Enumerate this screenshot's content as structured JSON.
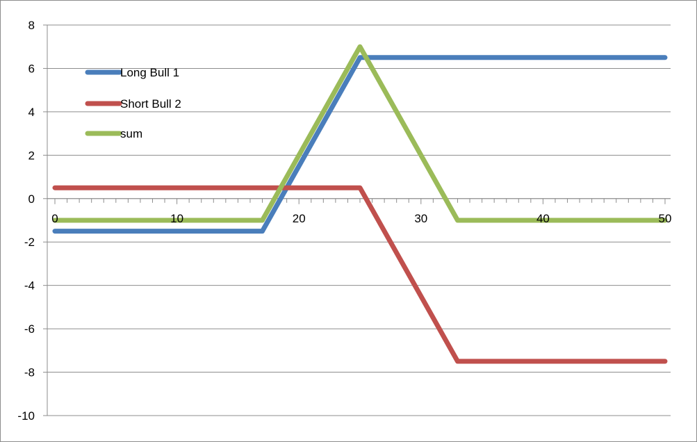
{
  "chart_data": {
    "type": "line",
    "title": "",
    "xlabel": "",
    "ylabel": "",
    "xlim": [
      0,
      50
    ],
    "ylim": [
      -10,
      8
    ],
    "x_ticks": [
      0,
      10,
      20,
      30,
      40,
      50
    ],
    "x_tick_labels": [
      "0",
      "10",
      "20",
      "30",
      "40",
      "50"
    ],
    "y_ticks": [
      8,
      6,
      4,
      2,
      0,
      -2,
      -4,
      -6,
      -8,
      -10
    ],
    "y_tick_labels": [
      "8",
      "6",
      "4",
      "2",
      "0",
      "-2",
      "-4",
      "-6",
      "-8",
      "-10"
    ],
    "grid": "horizontal",
    "legend_position": "top-left",
    "series": [
      {
        "name": "Long Bull 1",
        "color": "#4a7ebb",
        "points": [
          [
            0,
            -1.5
          ],
          [
            17,
            -1.5
          ],
          [
            25,
            6.5
          ],
          [
            50,
            6.5
          ]
        ]
      },
      {
        "name": "Short Bull 2",
        "color": "#c0504d",
        "points": [
          [
            0,
            0.5
          ],
          [
            25,
            0.5
          ],
          [
            33,
            -7.5
          ],
          [
            50,
            -7.5
          ]
        ]
      },
      {
        "name": "sum",
        "color": "#9bbb59",
        "points": [
          [
            0,
            -1
          ],
          [
            17,
            -1
          ],
          [
            25,
            7
          ],
          [
            33,
            -1
          ],
          [
            50,
            -1
          ]
        ]
      }
    ]
  }
}
